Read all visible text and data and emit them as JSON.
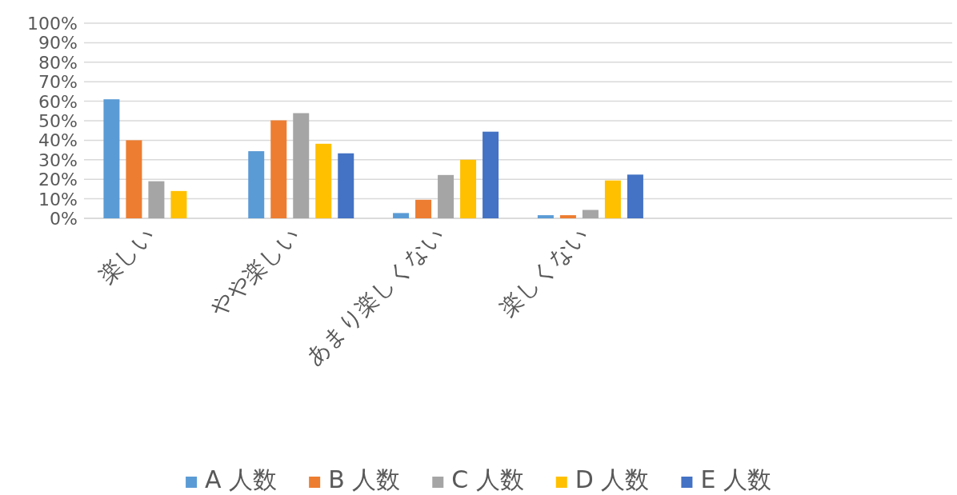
{
  "chart_data": {
    "type": "bar",
    "categories": [
      "楽しい",
      "やや楽しい",
      "あまり楽しくない",
      "楽しくない",
      null,
      null
    ],
    "series": [
      {
        "name": "A 人数",
        "color": "#5b9bd5",
        "values": [
          61,
          34.4,
          2.7,
          1.6,
          null,
          null
        ]
      },
      {
        "name": "B 人数",
        "color": "#ed7d31",
        "values": [
          40,
          50.2,
          9.5,
          1.6,
          null,
          null
        ]
      },
      {
        "name": "C 人数",
        "color": "#a5a5a5",
        "values": [
          19,
          53.9,
          22.2,
          4.3,
          null,
          null
        ]
      },
      {
        "name": "D 人数",
        "color": "#ffc000",
        "values": [
          14,
          38.2,
          30,
          19.4,
          null,
          null
        ]
      },
      {
        "name": "E 人数",
        "color": "#4472c4",
        "values": [
          0,
          33.3,
          44.4,
          22.4,
          null,
          null
        ]
      }
    ],
    "ylim": [
      0,
      100
    ],
    "yticks": [
      {
        "value": 0,
        "label": "0%"
      },
      {
        "value": 10,
        "label": "10%"
      },
      {
        "value": 20,
        "label": "20%"
      },
      {
        "value": 30,
        "label": "30%"
      },
      {
        "value": 40,
        "label": "40%"
      },
      {
        "value": 50,
        "label": "50%"
      },
      {
        "value": 60,
        "label": "60%"
      },
      {
        "value": 70,
        "label": "70%"
      },
      {
        "value": 80,
        "label": "80%"
      },
      {
        "value": 90,
        "label": "90%"
      },
      {
        "value": 100,
        "label": "100%"
      }
    ],
    "grid": "y",
    "legend": "bottom"
  }
}
